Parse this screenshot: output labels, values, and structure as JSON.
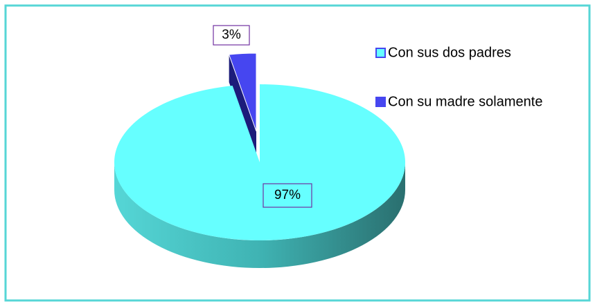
{
  "chart_data": {
    "type": "pie",
    "categories": [
      "Con sus dos padres",
      "Con su madre solamente"
    ],
    "values": [
      97,
      3
    ],
    "value_labels": [
      "97%",
      "3%"
    ],
    "colors": [
      "#66ffff",
      "#4646f0"
    ],
    "legend": "right"
  }
}
